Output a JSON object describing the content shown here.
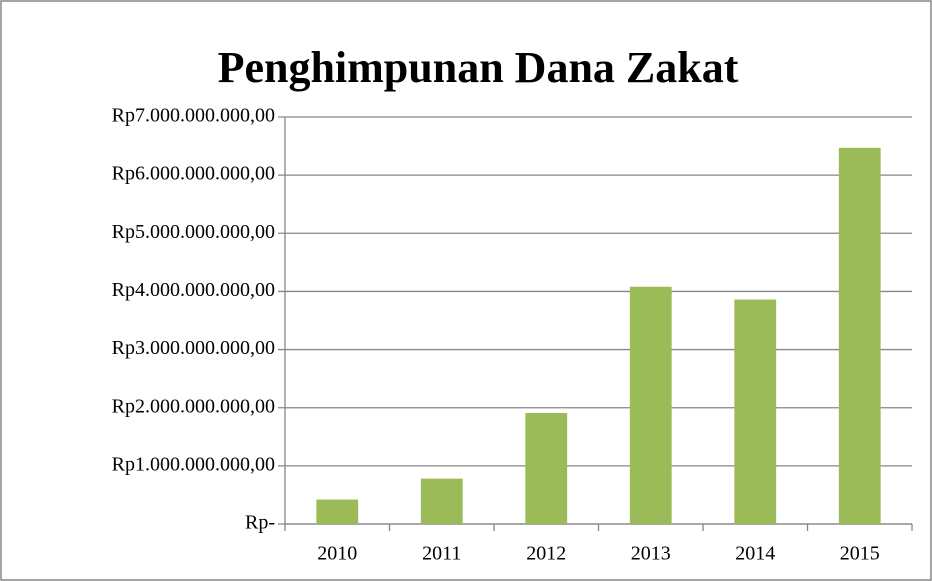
{
  "chart_data": {
    "type": "bar",
    "title": "Penghimpunan Dana Zakat",
    "categories": [
      "2010",
      "2011",
      "2012",
      "2013",
      "2014",
      "2015"
    ],
    "values": [
      420000000,
      780000000,
      1910000000,
      4080000000,
      3860000000,
      6470000000
    ],
    "color": "#9bbb59",
    "ylim": [
      0,
      7000000000
    ],
    "yticks": [
      {
        "value": 0,
        "label": "Rp-"
      },
      {
        "value": 1000000000,
        "label": "Rp1.000.000.000,00"
      },
      {
        "value": 2000000000,
        "label": "Rp2.000.000.000,00"
      },
      {
        "value": 3000000000,
        "label": "Rp3.000.000.000,00"
      },
      {
        "value": 4000000000,
        "label": "Rp4.000.000.000,00"
      },
      {
        "value": 5000000000,
        "label": "Rp5.000.000.000,00"
      },
      {
        "value": 6000000000,
        "label": "Rp6.000.000.000,00"
      },
      {
        "value": 7000000000,
        "label": "Rp7.000.000.000,00"
      }
    ],
    "grid": true
  }
}
